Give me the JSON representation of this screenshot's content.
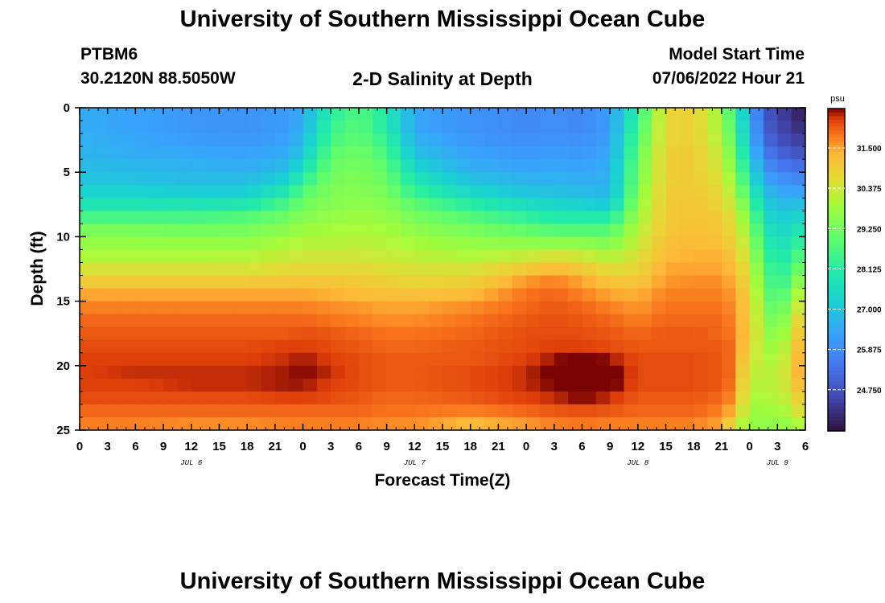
{
  "header": {
    "title": "University of Southern Mississippi Ocean Cube",
    "station_id": "PTBM6",
    "coordinates": "30.2120N  88.5050W",
    "plot_title": "2-D Salinity at Depth",
    "model_start_label": "Model Start Time",
    "model_start_value": "07/06/2022 Hour 21"
  },
  "footer": {
    "title": "University of Southern Mississippi Ocean Cube"
  },
  "chart_data": {
    "type": "heatmap",
    "title": "2-D Salinity at Depth",
    "xlabel": "Forecast Time(Z)",
    "ylabel": "Depth (ft)",
    "x_range_hours": [
      0,
      78
    ],
    "x_tick_hours": [
      0,
      3,
      6,
      9,
      12,
      15,
      18,
      21,
      24,
      27,
      30,
      33,
      36,
      39,
      42,
      45,
      48,
      51,
      54,
      57,
      60,
      63,
      66,
      69,
      72,
      75,
      78
    ],
    "x_tick_labels": [
      "0",
      "3",
      "6",
      "9",
      "12",
      "15",
      "18",
      "21",
      "0",
      "3",
      "6",
      "9",
      "12",
      "15",
      "18",
      "21",
      "0",
      "3",
      "6",
      "9",
      "12",
      "15",
      "18",
      "21",
      "0",
      "3",
      "6"
    ],
    "date_labels": [
      {
        "text": "JUL 6",
        "hour": 12
      },
      {
        "text": "JUL 7",
        "hour": 36
      },
      {
        "text": "JUL 8",
        "hour": 60
      },
      {
        "text": "JUL 9",
        "hour": 75
      }
    ],
    "y_range_ft": [
      0,
      25
    ],
    "y_tick_values": [
      0,
      5,
      10,
      15,
      20,
      25
    ],
    "y_tick_labels": [
      "0",
      "5",
      "10",
      "15",
      "20",
      "25"
    ],
    "colorbar": {
      "unit": "psu",
      "min": 23.6,
      "max": 32.6,
      "ticks": [
        31.5,
        30.375,
        29.25,
        28.125,
        27.0,
        25.875,
        24.75
      ],
      "tick_labels": [
        "31.500",
        "30.375",
        "29.250",
        "28.125",
        "27.000",
        "25.875",
        "24.750"
      ]
    },
    "grid": {
      "hours_step": 1.5,
      "depths_ft": [
        0.5,
        1.5,
        2.5,
        3.5,
        4.5,
        5.5,
        6.5,
        7.5,
        8.5,
        9.5,
        10.5,
        11.5,
        12.5,
        13.5,
        14.5,
        15.5,
        16.5,
        17.5,
        18.5,
        19.5,
        20.5,
        21.5,
        22.5,
        23.5,
        24.5
      ],
      "columns": [
        {
          "hour": 0,
          "psu": [
            26.5,
            26.5,
            26.6,
            26.7,
            26.8,
            27.0,
            27.3,
            27.8,
            28.6,
            29.3,
            29.7,
            30.0,
            30.5,
            31.0,
            31.5,
            31.8,
            32.0,
            32.1,
            32.2,
            32.3,
            32.3,
            32.3,
            32.2,
            32.0,
            31.8
          ]
        },
        {
          "hour": 6,
          "psu": [
            26.3,
            26.3,
            26.4,
            26.5,
            26.7,
            26.9,
            27.3,
            27.8,
            28.6,
            29.3,
            29.7,
            30.0,
            30.5,
            31.0,
            31.5,
            31.8,
            32.0,
            32.1,
            32.2,
            32.3,
            32.4,
            32.3,
            32.2,
            32.0,
            31.8
          ]
        },
        {
          "hour": 12,
          "psu": [
            26.1,
            26.1,
            26.2,
            26.4,
            26.6,
            26.8,
            27.2,
            27.8,
            28.6,
            29.2,
            29.7,
            30.0,
            30.5,
            31.0,
            31.5,
            31.8,
            32.0,
            32.1,
            32.2,
            32.3,
            32.4,
            32.4,
            32.2,
            32.0,
            31.7
          ]
        },
        {
          "hour": 18,
          "psu": [
            26.0,
            26.0,
            26.1,
            26.3,
            26.5,
            26.8,
            27.2,
            27.9,
            28.8,
            29.3,
            29.7,
            30.1,
            30.5,
            31.0,
            31.5,
            31.8,
            32.0,
            32.1,
            32.2,
            32.3,
            32.4,
            32.4,
            32.2,
            32.0,
            31.7
          ]
        },
        {
          "hour": 22.5,
          "psu": [
            26.2,
            26.2,
            26.3,
            26.5,
            26.8,
            27.3,
            28.0,
            28.7,
            29.2,
            29.6,
            30.0,
            30.3,
            30.7,
            31.1,
            31.5,
            31.8,
            32.0,
            32.1,
            32.3,
            32.4,
            32.5,
            32.5,
            32.3,
            32.0,
            31.8
          ]
        },
        {
          "hour": 24,
          "psu": [
            26.5,
            26.6,
            26.8,
            27.1,
            27.6,
            28.2,
            28.8,
            29.2,
            29.5,
            29.8,
            30.1,
            30.4,
            30.7,
            31.1,
            31.5,
            31.8,
            32.0,
            32.2,
            32.3,
            32.5,
            32.6,
            32.5,
            32.3,
            32.0,
            31.8
          ]
        },
        {
          "hour": 27,
          "psu": [
            28.2,
            28.4,
            28.6,
            28.9,
            29.1,
            29.3,
            29.4,
            29.5,
            29.7,
            29.9,
            30.1,
            30.4,
            30.7,
            31.1,
            31.4,
            31.7,
            31.9,
            32.1,
            32.2,
            32.3,
            32.4,
            32.3,
            32.2,
            32.0,
            31.8
          ]
        },
        {
          "hour": 30,
          "psu": [
            28.8,
            28.9,
            29.0,
            29.2,
            29.3,
            29.4,
            29.5,
            29.6,
            29.8,
            30.0,
            30.2,
            30.4,
            30.7,
            31.0,
            31.3,
            31.6,
            31.8,
            32.0,
            32.1,
            32.2,
            32.2,
            32.2,
            32.1,
            32.0,
            31.8
          ]
        },
        {
          "hour": 33,
          "psu": [
            28.0,
            28.0,
            28.3,
            28.6,
            28.9,
            29.1,
            29.3,
            29.5,
            29.7,
            29.9,
            30.1,
            30.3,
            30.6,
            30.9,
            31.2,
            31.5,
            31.7,
            31.9,
            32.0,
            32.1,
            32.1,
            32.1,
            32.0,
            31.9,
            31.7
          ]
        },
        {
          "hour": 36,
          "psu": [
            26.4,
            26.4,
            26.6,
            26.9,
            27.3,
            27.8,
            28.3,
            28.9,
            29.3,
            29.6,
            29.9,
            30.2,
            30.5,
            30.8,
            31.2,
            31.5,
            31.7,
            31.9,
            32.0,
            32.1,
            32.1,
            32.1,
            32.0,
            31.9,
            31.7
          ]
        },
        {
          "hour": 42,
          "psu": [
            26.0,
            26.0,
            26.1,
            26.3,
            26.5,
            26.9,
            27.4,
            28.1,
            28.8,
            29.3,
            29.7,
            30.0,
            30.5,
            30.9,
            31.3,
            31.7,
            31.9,
            32.0,
            32.1,
            32.1,
            32.2,
            32.2,
            32.1,
            31.8,
            31.3
          ]
        },
        {
          "hour": 48,
          "psu": [
            25.8,
            25.8,
            25.9,
            26.1,
            26.3,
            26.6,
            27.0,
            27.6,
            28.3,
            29.0,
            29.6,
            30.3,
            31.0,
            31.6,
            31.9,
            32.0,
            32.1,
            32.2,
            32.2,
            32.3,
            32.4,
            32.4,
            32.3,
            32.0,
            31.6
          ]
        },
        {
          "hour": 51,
          "psu": [
            25.9,
            25.9,
            26.0,
            26.2,
            26.4,
            26.6,
            26.9,
            27.4,
            28.0,
            28.8,
            29.6,
            30.5,
            31.3,
            31.8,
            32.0,
            32.1,
            32.2,
            32.2,
            32.3,
            32.5,
            32.7,
            32.6,
            32.4,
            32.1,
            31.8
          ]
        },
        {
          "hour": 54,
          "psu": [
            25.8,
            25.8,
            25.9,
            26.1,
            26.3,
            26.5,
            26.8,
            27.3,
            28.0,
            28.8,
            29.6,
            30.4,
            31.0,
            31.5,
            31.8,
            32.0,
            32.1,
            32.2,
            32.3,
            32.8,
            33.0,
            32.9,
            32.6,
            32.2,
            31.9
          ]
        },
        {
          "hour": 57,
          "psu": [
            26.2,
            26.2,
            26.3,
            26.4,
            26.5,
            26.6,
            26.7,
            27.1,
            28.0,
            28.8,
            29.4,
            30.0,
            30.6,
            31.1,
            31.5,
            31.8,
            32.0,
            32.1,
            32.2,
            32.5,
            32.8,
            32.7,
            32.4,
            32.1,
            31.8
          ]
        },
        {
          "hour": 60,
          "psu": [
            28.3,
            28.5,
            28.8,
            29.0,
            29.2,
            29.3,
            29.5,
            29.7,
            29.9,
            30.1,
            30.3,
            30.6,
            30.8,
            31.1,
            31.4,
            31.6,
            31.8,
            32.0,
            32.1,
            32.2,
            32.2,
            32.2,
            32.1,
            32.0,
            31.8
          ]
        },
        {
          "hour": 63,
          "psu": [
            30.8,
            30.8,
            30.8,
            30.9,
            30.9,
            30.9,
            31.0,
            31.0,
            31.0,
            31.1,
            31.2,
            31.3,
            31.5,
            31.6,
            31.8,
            31.9,
            32.0,
            32.1,
            32.1,
            32.2,
            32.2,
            32.2,
            32.1,
            32.0,
            31.8
          ]
        },
        {
          "hour": 66,
          "psu": [
            30.9,
            30.9,
            30.9,
            31.0,
            31.0,
            31.0,
            31.0,
            31.1,
            31.1,
            31.2,
            31.3,
            31.4,
            31.5,
            31.7,
            31.8,
            31.9,
            32.0,
            32.1,
            32.1,
            32.2,
            32.2,
            32.2,
            32.1,
            32.0,
            31.8
          ]
        },
        {
          "hour": 69,
          "psu": [
            29.8,
            29.9,
            30.0,
            30.2,
            30.3,
            30.5,
            30.7,
            30.8,
            31.0,
            31.1,
            31.2,
            31.4,
            31.5,
            31.7,
            31.8,
            31.9,
            32.0,
            32.0,
            32.1,
            32.1,
            32.1,
            32.1,
            32.0,
            31.8,
            31.5
          ]
        },
        {
          "hour": 70.5,
          "psu": [
            28.2,
            28.4,
            28.6,
            28.9,
            29.2,
            29.5,
            29.8,
            30.1,
            30.4,
            30.6,
            30.8,
            31.0,
            31.2,
            31.3,
            31.5,
            31.6,
            31.7,
            31.8,
            31.9,
            31.9,
            31.9,
            31.8,
            31.6,
            31.2,
            30.5
          ]
        },
        {
          "hour": 72,
          "psu": [
            26.5,
            26.6,
            26.8,
            27.1,
            27.5,
            27.9,
            28.3,
            28.8,
            29.2,
            29.6,
            29.9,
            30.1,
            30.4,
            30.6,
            30.8,
            30.9,
            30.9,
            30.9,
            30.7,
            30.4,
            30.1,
            29.9,
            29.7,
            29.6,
            29.6
          ]
        },
        {
          "hour": 73.5,
          "psu": [
            25.0,
            25.1,
            25.3,
            25.6,
            26.0,
            26.4,
            26.9,
            27.3,
            27.7,
            28.0,
            28.3,
            28.6,
            28.9,
            29.1,
            29.3,
            29.5,
            29.7,
            29.9,
            30.0,
            30.2,
            30.3,
            30.3,
            30.2,
            30.0,
            29.8
          ]
        },
        {
          "hour": 75,
          "psu": [
            24.5,
            24.6,
            24.8,
            25.1,
            25.5,
            26.0,
            26.4,
            26.8,
            27.1,
            27.3,
            27.5,
            27.7,
            27.9,
            28.1,
            28.4,
            28.7,
            29.0,
            29.3,
            29.6,
            29.8,
            30.0,
            30.0,
            29.9,
            29.7,
            29.5
          ]
        },
        {
          "hour": 78,
          "psu": [
            23.8,
            24.0,
            24.3,
            24.7,
            25.2,
            25.7,
            26.3,
            26.9,
            27.5,
            28.0,
            28.5,
            29.0,
            29.5,
            30.0,
            30.5,
            30.9,
            31.3,
            31.5,
            31.7,
            31.8,
            31.8,
            31.6,
            31.2,
            30.8,
            30.2
          ]
        }
      ]
    }
  }
}
